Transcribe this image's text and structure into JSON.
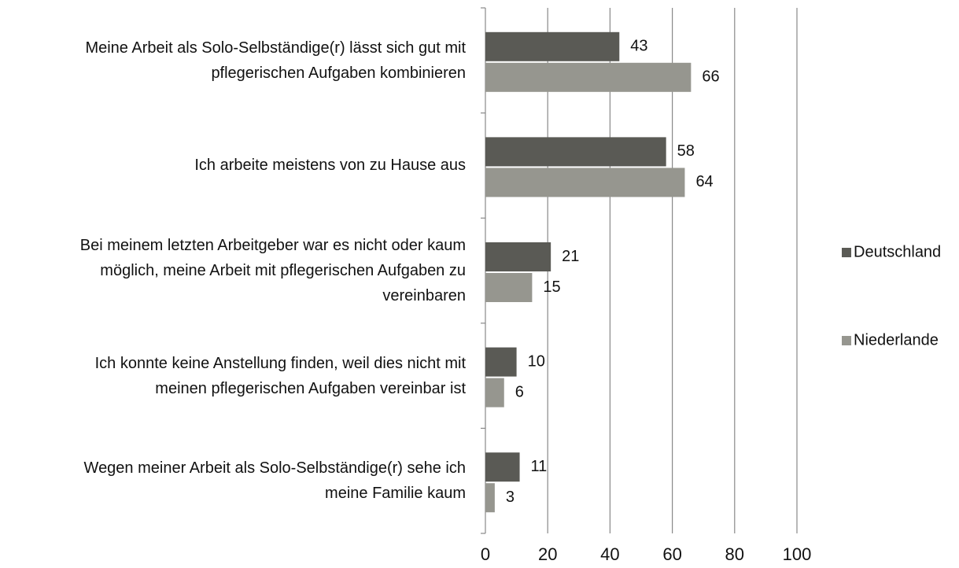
{
  "chart_data": {
    "type": "hbar",
    "categories": [
      "Meine Arbeit als Solo-Selbständige(r) lässt sich gut mit\npflegerischen Aufgaben kombinieren",
      "Ich arbeite meistens von zu Hause aus",
      "Bei meinem letzten Arbeitgeber war es nicht oder kaum\nmöglich, meine Arbeit mit pflegerischen Aufgaben zu\nvereinbaren",
      "Ich konnte keine Anstellung finden, weil dies nicht mit\nmeinen pflegerischen Aufgaben vereinbar ist",
      "Wegen meiner Arbeit als Solo-Selbständige(r)  sehe ich\nmeine Familie kaum"
    ],
    "series": [
      {
        "name": "Deutschland",
        "color": "#5a5a55",
        "values": [
          43,
          58,
          21,
          10,
          11
        ]
      },
      {
        "name": "Niederlande",
        "color": "#96968f",
        "values": [
          66,
          64,
          15,
          6,
          3
        ]
      }
    ],
    "xlim": [
      0,
      100
    ],
    "xticks": [
      0,
      20,
      40,
      60,
      80,
      100
    ],
    "grid": true,
    "legend": "right"
  }
}
